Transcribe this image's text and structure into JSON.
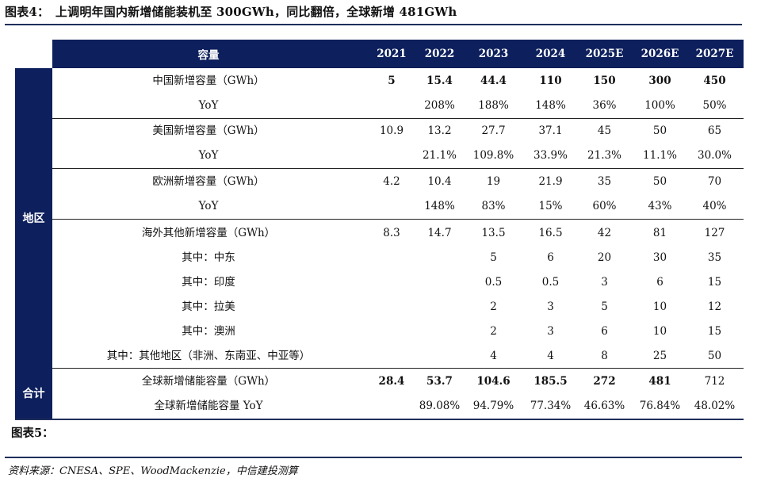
{
  "title": "图表4：　上调明年国内新增储能装机至 300GWh，同比翻倍，全球新增 481GWh",
  "header": {
    "label": "容量",
    "years": [
      "2021",
      "2022",
      "2023",
      "2024",
      "2025E",
      "2026E",
      "2027E"
    ]
  },
  "sections": {
    "region": "地区",
    "total": "合计"
  },
  "rows": [
    {
      "label": "中国新增容量（GWh）",
      "bold": true,
      "values": [
        "5",
        "15.4",
        "44.4",
        "110",
        "150",
        "300",
        "450"
      ]
    },
    {
      "label": "YoY",
      "bold": false,
      "values": [
        "",
        "208%",
        "188%",
        "148%",
        "36%",
        "100%",
        "50%"
      ]
    },
    {
      "label": "美国新增容量（GWh）",
      "bold": false,
      "values": [
        "10.9",
        "13.2",
        "27.7",
        "37.1",
        "45",
        "50",
        "65"
      ]
    },
    {
      "label": "YoY",
      "bold": false,
      "values": [
        "",
        "21.1%",
        "109.8%",
        "33.9%",
        "21.3%",
        "11.1%",
        "30.0%"
      ]
    },
    {
      "label": "欧洲新增容量（GWh）",
      "bold": false,
      "values": [
        "4.2",
        "10.4",
        "19",
        "21.9",
        "35",
        "50",
        "70"
      ]
    },
    {
      "label": "YoY",
      "bold": false,
      "values": [
        "",
        "148%",
        "83%",
        "15%",
        "60%",
        "43%",
        "40%"
      ]
    },
    {
      "label": "海外其他新增容量（GWh）",
      "bold": false,
      "values": [
        "8.3",
        "14.7",
        "13.5",
        "16.5",
        "42",
        "81",
        "127"
      ]
    },
    {
      "label": "其中：中东",
      "bold": false,
      "values": [
        "",
        "",
        "5",
        "6",
        "20",
        "30",
        "35"
      ]
    },
    {
      "label": "其中：印度",
      "bold": false,
      "values": [
        "",
        "",
        "0.5",
        "0.5",
        "3",
        "6",
        "15"
      ]
    },
    {
      "label": "其中：拉美",
      "bold": false,
      "values": [
        "",
        "",
        "2",
        "3",
        "5",
        "10",
        "12"
      ]
    },
    {
      "label": "其中：澳洲",
      "bold": false,
      "values": [
        "",
        "",
        "2",
        "3",
        "6",
        "10",
        "15"
      ]
    },
    {
      "label": "其中：其他地区（非洲、东南亚、中亚等）",
      "bold": false,
      "values": [
        "",
        "",
        "4",
        "4",
        "8",
        "25",
        "50"
      ]
    },
    {
      "label": "全球新增储能容量（GWh）",
      "bold": true,
      "values": [
        "28.4",
        "53.7",
        "104.6",
        "185.5",
        "272",
        "481",
        "712"
      ]
    },
    {
      "label": "全球新增储能容量 YoY",
      "bold": false,
      "values": [
        "",
        "89.08%",
        "94.79%",
        "77.34%",
        "46.63%",
        "76.84%",
        "48.02%"
      ]
    }
  ],
  "next_title": "图表5：",
  "source": "资料来源：CNESA、SPE、WoodMackenzie，中信建投测算",
  "colors": {
    "navy": "#0d1f5c"
  }
}
